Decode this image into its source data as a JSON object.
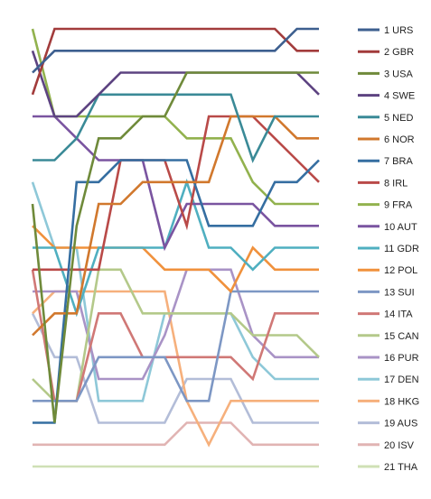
{
  "chart_data": {
    "type": "line",
    "title": "",
    "xlabel": "",
    "ylabel": "",
    "x": [
      1,
      2,
      3,
      4,
      5,
      6,
      7,
      8,
      9,
      10,
      11,
      12,
      13,
      14
    ],
    "y_reversed": true,
    "ylim": [
      1,
      21
    ],
    "grid": false,
    "legend_placement": "right",
    "series": [
      {
        "name": "1 URS",
        "color": "#3d5f8f",
        "values": [
          3,
          2,
          2,
          2,
          2,
          2,
          2,
          2,
          2,
          2,
          2,
          2,
          1,
          1
        ]
      },
      {
        "name": "2 GBR",
        "color": "#a23b3b",
        "values": [
          4,
          1,
          1,
          1,
          1,
          1,
          1,
          1,
          1,
          1,
          1,
          1,
          2,
          2
        ]
      },
      {
        "name": "3 USA",
        "color": "#6f8a3a",
        "values": [
          9,
          19,
          10,
          6,
          6,
          5,
          5,
          3,
          3,
          3,
          3,
          3,
          3,
          3
        ]
      },
      {
        "name": "4 SWE",
        "color": "#5d4381",
        "values": [
          2,
          5,
          5,
          4,
          3,
          3,
          3,
          3,
          3,
          3,
          3,
          3,
          3,
          4
        ]
      },
      {
        "name": "5 NED",
        "color": "#3a8a97",
        "values": [
          7,
          7,
          6,
          4,
          4,
          4,
          4,
          4,
          4,
          4,
          7,
          5,
          5,
          5
        ]
      },
      {
        "name": "6 NOR",
        "color": "#d1782d",
        "values": [
          15,
          14,
          14,
          9,
          9,
          8,
          8,
          8,
          8,
          5,
          5,
          5,
          6,
          6
        ]
      },
      {
        "name": "7 BRA",
        "color": "#356ea1",
        "values": [
          19,
          19,
          8,
          8,
          7,
          7,
          7,
          7,
          10,
          10,
          10,
          8,
          8,
          7
        ]
      },
      {
        "name": "8 IRL",
        "color": "#b94a48",
        "values": [
          12,
          12,
          12,
          12,
          7,
          7,
          7,
          10,
          5,
          5,
          5,
          6,
          7,
          8
        ]
      },
      {
        "name": "9 FRA",
        "color": "#92b24e",
        "values": [
          1,
          5,
          5,
          5,
          5,
          5,
          5,
          6,
          6,
          6,
          8,
          9,
          9,
          9
        ]
      },
      {
        "name": "10 AUT",
        "color": "#7a54a0",
        "values": [
          5,
          5,
          6,
          7,
          7,
          7,
          11,
          9,
          9,
          9,
          9,
          10,
          10,
          10
        ]
      },
      {
        "name": "11 GDR",
        "color": "#4fafc0",
        "values": [
          11,
          11,
          14,
          11,
          11,
          11,
          11,
          8,
          11,
          11,
          12,
          11,
          11,
          11
        ]
      },
      {
        "name": "12 POL",
        "color": "#f0913c",
        "values": [
          10,
          11,
          11,
          11,
          11,
          11,
          12,
          12,
          12,
          13,
          11,
          12,
          12,
          12
        ]
      },
      {
        "name": "13 SUI",
        "color": "#7d97c4",
        "values": [
          18,
          18,
          18,
          16,
          16,
          16,
          16,
          18,
          18,
          13,
          13,
          13,
          13,
          13
        ]
      },
      {
        "name": "14 ITA",
        "color": "#d07876",
        "values": [
          12,
          18,
          18,
          14,
          14,
          16,
          16,
          16,
          16,
          16,
          17,
          14,
          14,
          14
        ]
      },
      {
        "name": "15 CAN",
        "color": "#b4c98a",
        "values": [
          17,
          18,
          18,
          12,
          12,
          14,
          14,
          14,
          14,
          14,
          15,
          15,
          15,
          16
        ]
      },
      {
        "name": "16 PUR",
        "color": "#a993c6",
        "values": [
          13,
          13,
          13,
          17,
          17,
          17,
          15,
          12,
          12,
          12,
          15,
          16,
          16,
          16
        ]
      },
      {
        "name": "17 DEN",
        "color": "#8ec8d8",
        "values": [
          8,
          11,
          11,
          18,
          18,
          18,
          14,
          14,
          14,
          14,
          16,
          17,
          17,
          17
        ]
      },
      {
        "name": "18 HKG",
        "color": "#f6b07c",
        "values": [
          14,
          13,
          13,
          13,
          13,
          13,
          13,
          18,
          20,
          18,
          18,
          18,
          18,
          18
        ]
      },
      {
        "name": "19 AUS",
        "color": "#b3bdd8",
        "values": [
          14,
          16,
          16,
          19,
          19,
          19,
          19,
          17,
          17,
          17,
          19,
          19,
          19,
          19
        ]
      },
      {
        "name": "20 ISV",
        "color": "#e1b4b3",
        "values": [
          20,
          20,
          20,
          20,
          20,
          20,
          20,
          19,
          19,
          19,
          20,
          20,
          20,
          20
        ]
      },
      {
        "name": "21 THA",
        "color": "#cfe0b5",
        "values": [
          21,
          21,
          21,
          21,
          21,
          21,
          21,
          21,
          21,
          21,
          21,
          21,
          21,
          21
        ]
      }
    ]
  }
}
